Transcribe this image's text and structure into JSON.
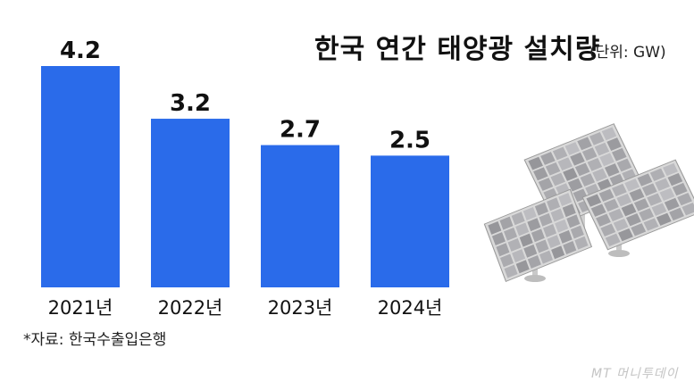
{
  "title": "한국 연간 태양광 설치량",
  "unit": "(단위: GW)",
  "source": "*자료: 한국수출입은행",
  "watermark": "MT 머니투데이",
  "colors": {
    "bar": "#2a6bea",
    "text": "#111111"
  },
  "illustration": "solar-panels",
  "chart_data": {
    "type": "bar",
    "title": "한국 연간 태양광 설치량",
    "unit": "GW",
    "categories": [
      "2021년",
      "2022년",
      "2023년",
      "2024년"
    ],
    "values": [
      4.2,
      3.2,
      2.7,
      2.5
    ],
    "value_labels": [
      "4.2",
      "3.2",
      "2.7",
      "2.5"
    ],
    "ylim": [
      0,
      4.2
    ],
    "grid": false,
    "legend": "none"
  }
}
